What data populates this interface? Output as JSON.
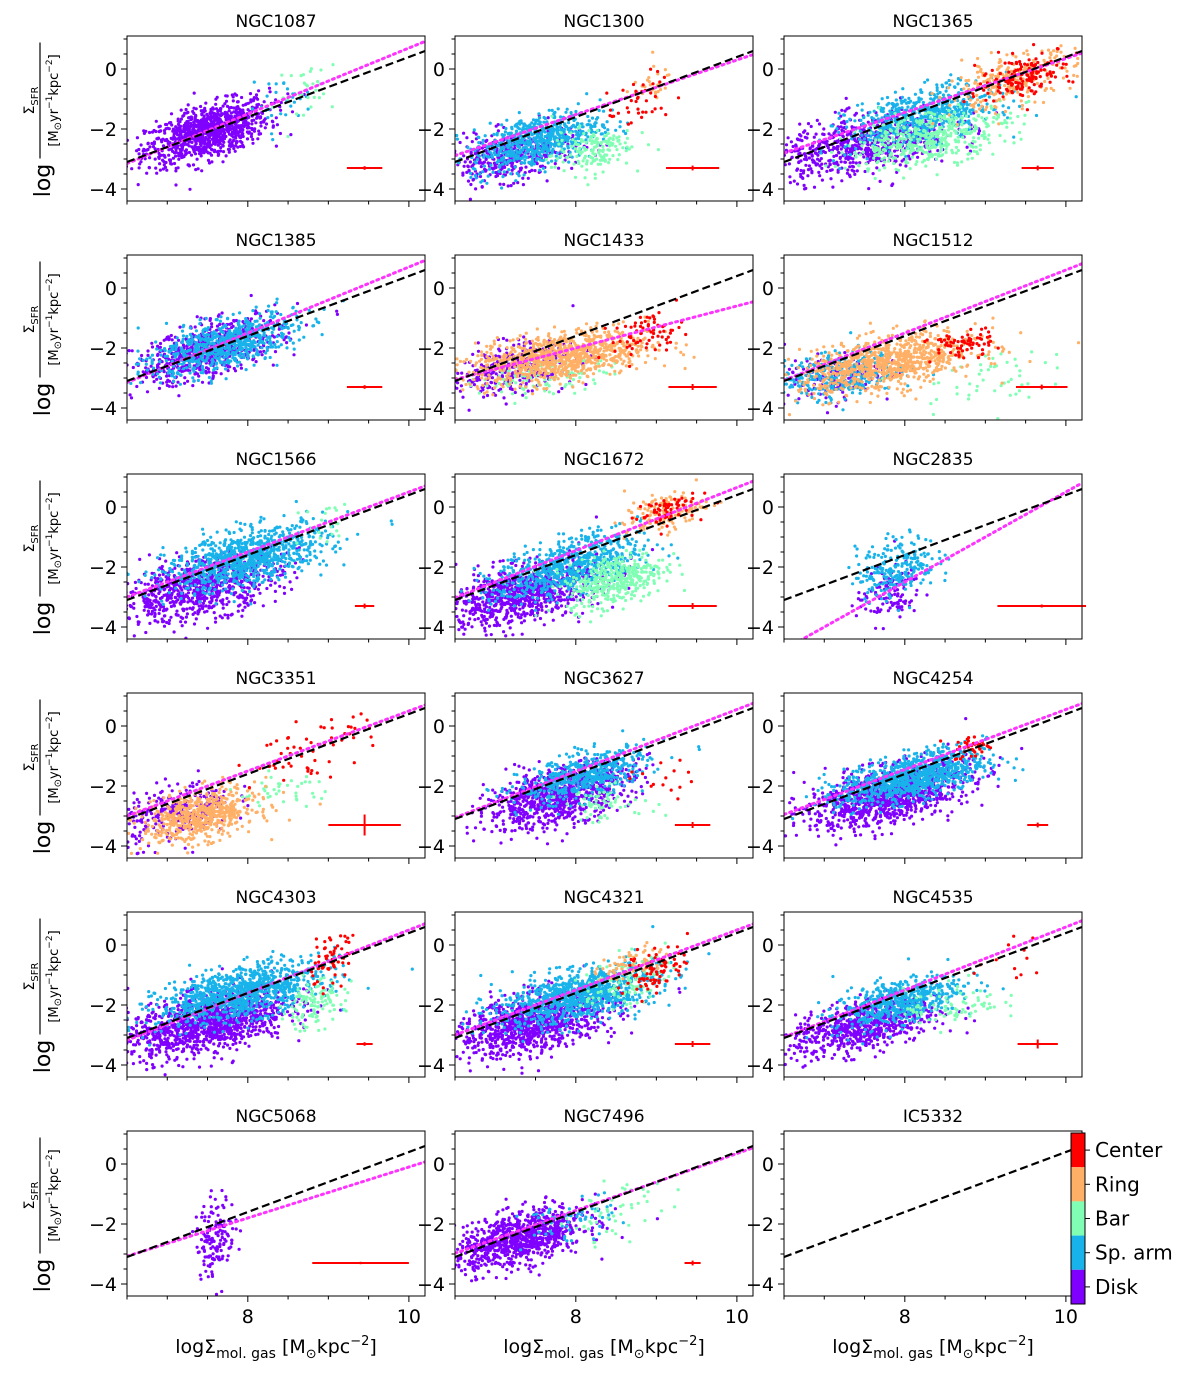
{
  "chart_data": {
    "type": "scatter",
    "layout": {
      "rows": 6,
      "cols": 3
    },
    "xlim": [
      6.5,
      10.2
    ],
    "ylim": [
      -4.4,
      1.1
    ],
    "xticks": [
      8,
      10
    ],
    "yticks": [
      0,
      -2,
      -4
    ],
    "xlabel": {
      "prefix": "logΣ",
      "sub": "mol. gas",
      "unit_open": " [M",
      "sun": "⊙",
      "unit_mid": "kpc",
      "sup": "−2",
      "unit_close": "]"
    },
    "ylabel": {
      "log": "log",
      "sigma": "Σ",
      "sub": "SFR",
      "unit_open": "[M",
      "sun": "⊙",
      "yr": "yr",
      "exp1": "−1",
      "kpc": "kpc",
      "exp2": "−2",
      "unit_close": "]"
    },
    "reference_line": {
      "style": "dashed",
      "color": "#000000",
      "slope": 1.0,
      "intercept": -9.6
    },
    "colorbar": {
      "categories": [
        "Center",
        "Ring",
        "Bar",
        "Sp. arm",
        "Disk"
      ],
      "colors": [
        "#ff0000",
        "#ffb066",
        "#80ffb4",
        "#18b3ea",
        "#8000ff"
      ]
    },
    "panels": [
      {
        "name": "NGC1087",
        "fit": {
          "slope": 1.1,
          "intercept": -10.3
        },
        "err": {
          "x": 9.45,
          "y": -3.3,
          "dx": 0.22,
          "dy": 0.06
        },
        "clusters": [
          {
            "c": "Disk",
            "n": 1000,
            "mx": 7.5,
            "sx": 0.38,
            "my": -2.1,
            "sy": 0.52,
            "rho": 0.55
          },
          {
            "c": "Sp. arm",
            "n": 30,
            "mx": 8.4,
            "sx": 0.2,
            "my": -1.1,
            "sy": 0.4,
            "rho": 0.3
          },
          {
            "c": "Bar",
            "n": 30,
            "mx": 8.8,
            "sx": 0.22,
            "my": -0.7,
            "sy": 0.5,
            "rho": 0.3
          }
        ]
      },
      {
        "name": "NGC1300",
        "fit": {
          "slope": 0.91,
          "intercept": -8.8
        },
        "err": {
          "x": 9.45,
          "y": -3.3,
          "dx": 0.33,
          "dy": 0.08
        },
        "clusters": [
          {
            "c": "Disk",
            "n": 400,
            "mx": 7.2,
            "sx": 0.4,
            "my": -2.9,
            "sy": 0.45,
            "rho": 0.4
          },
          {
            "c": "Sp. arm",
            "n": 650,
            "mx": 7.5,
            "sx": 0.4,
            "my": -2.4,
            "sy": 0.5,
            "rho": 0.5
          },
          {
            "c": "Bar",
            "n": 160,
            "mx": 8.2,
            "sx": 0.25,
            "my": -2.7,
            "sy": 0.4,
            "rho": 0.3
          },
          {
            "c": "Center",
            "n": 40,
            "mx": 8.8,
            "sx": 0.2,
            "my": -1.2,
            "sy": 0.5,
            "rho": 0.5
          },
          {
            "c": "Ring",
            "n": 25,
            "mx": 8.9,
            "sx": 0.15,
            "my": -0.5,
            "sy": 0.3,
            "rho": 0.3
          }
        ]
      },
      {
        "name": "NGC1365",
        "fit": {
          "slope": 0.9,
          "intercept": -8.65
        },
        "err": {
          "x": 9.65,
          "y": -3.3,
          "dx": 0.2,
          "dy": 0.08
        },
        "clusters": [
          {
            "c": "Disk",
            "n": 700,
            "mx": 7.5,
            "sx": 0.55,
            "my": -2.5,
            "sy": 0.55,
            "rho": 0.45
          },
          {
            "c": "Sp. arm",
            "n": 600,
            "mx": 8.2,
            "sx": 0.45,
            "my": -1.6,
            "sy": 0.5,
            "rho": 0.5
          },
          {
            "c": "Bar",
            "n": 450,
            "mx": 8.3,
            "sx": 0.5,
            "my": -2.3,
            "sy": 0.5,
            "rho": 0.5
          },
          {
            "c": "Ring",
            "n": 250,
            "mx": 9.3,
            "sx": 0.4,
            "my": -0.4,
            "sy": 0.5,
            "rho": 0.6
          },
          {
            "c": "Center",
            "n": 150,
            "mx": 9.5,
            "sx": 0.3,
            "my": -0.2,
            "sy": 0.4,
            "rho": 0.5
          }
        ]
      },
      {
        "name": "NGC1385",
        "fit": {
          "slope": 1.1,
          "intercept": -10.3
        },
        "err": {
          "x": 9.45,
          "y": -3.3,
          "dx": 0.22,
          "dy": 0.06
        },
        "clusters": [
          {
            "c": "Disk",
            "n": 650,
            "mx": 7.5,
            "sx": 0.45,
            "my": -2.1,
            "sy": 0.55,
            "rho": 0.6
          },
          {
            "c": "Sp. arm",
            "n": 700,
            "mx": 7.7,
            "sx": 0.45,
            "my": -1.9,
            "sy": 0.5,
            "rho": 0.6
          }
        ]
      },
      {
        "name": "NGC1433",
        "fit": {
          "slope": 0.7,
          "intercept": -7.6
        },
        "err": {
          "x": 9.45,
          "y": -3.3,
          "dx": 0.3,
          "dy": 0.1
        },
        "clusters": [
          {
            "c": "Disk",
            "n": 350,
            "mx": 7.2,
            "sx": 0.4,
            "my": -2.7,
            "sy": 0.45,
            "rho": 0.4
          },
          {
            "c": "Ring",
            "n": 900,
            "mx": 7.8,
            "sx": 0.55,
            "my": -2.3,
            "sy": 0.45,
            "rho": 0.4
          },
          {
            "c": "Bar",
            "n": 120,
            "mx": 7.6,
            "sx": 0.4,
            "my": -2.9,
            "sy": 0.35,
            "rho": 0.3
          },
          {
            "c": "Center",
            "n": 70,
            "mx": 8.9,
            "sx": 0.22,
            "my": -1.5,
            "sy": 0.35,
            "rho": 0.4
          }
        ]
      },
      {
        "name": "NGC1512",
        "fit": {
          "slope": 1.05,
          "intercept": -9.9
        },
        "err": {
          "x": 9.7,
          "y": -3.3,
          "dx": 0.32,
          "dy": 0.08
        },
        "clusters": [
          {
            "c": "Sp. arm",
            "n": 350,
            "mx": 7.2,
            "sx": 0.35,
            "my": -2.9,
            "sy": 0.4,
            "rho": 0.3
          },
          {
            "c": "Ring",
            "n": 850,
            "mx": 7.8,
            "sx": 0.55,
            "my": -2.5,
            "sy": 0.5,
            "rho": 0.5
          },
          {
            "c": "Disk",
            "n": 150,
            "mx": 7.1,
            "sx": 0.3,
            "my": -3.0,
            "sy": 0.4,
            "rho": 0.3
          },
          {
            "c": "Center",
            "n": 70,
            "mx": 8.7,
            "sx": 0.2,
            "my": -1.9,
            "sy": 0.25,
            "rho": 0.3
          },
          {
            "c": "Bar",
            "n": 50,
            "mx": 8.9,
            "sx": 0.4,
            "my": -3.0,
            "sy": 0.5,
            "rho": 0.3
          }
        ]
      },
      {
        "name": "NGC1566",
        "fit": {
          "slope": 1.0,
          "intercept": -9.5
        },
        "err": {
          "x": 9.45,
          "y": -3.3,
          "dx": 0.12,
          "dy": 0.08
        },
        "clusters": [
          {
            "c": "Disk",
            "n": 800,
            "mx": 7.4,
            "sx": 0.5,
            "my": -2.7,
            "sy": 0.55,
            "rho": 0.5
          },
          {
            "c": "Sp. arm",
            "n": 900,
            "mx": 8.0,
            "sx": 0.5,
            "my": -1.7,
            "sy": 0.55,
            "rho": 0.55
          },
          {
            "c": "Bar",
            "n": 20,
            "mx": 9.0,
            "sx": 0.2,
            "my": -0.6,
            "sy": 0.4,
            "rho": 0.3
          }
        ]
      },
      {
        "name": "NGC1672",
        "fit": {
          "slope": 1.05,
          "intercept": -9.85
        },
        "err": {
          "x": 9.45,
          "y": -3.3,
          "dx": 0.3,
          "dy": 0.1
        },
        "clusters": [
          {
            "c": "Disk",
            "n": 900,
            "mx": 7.3,
            "sx": 0.5,
            "my": -2.9,
            "sy": 0.55,
            "rho": 0.5
          },
          {
            "c": "Sp. arm",
            "n": 700,
            "mx": 7.9,
            "sx": 0.45,
            "my": -2.0,
            "sy": 0.55,
            "rho": 0.55
          },
          {
            "c": "Bar",
            "n": 400,
            "mx": 8.5,
            "sx": 0.3,
            "my": -2.4,
            "sy": 0.45,
            "rho": 0.4
          },
          {
            "c": "Ring",
            "n": 150,
            "mx": 9.1,
            "sx": 0.25,
            "my": -0.2,
            "sy": 0.35,
            "rho": 0.5
          },
          {
            "c": "Center",
            "n": 60,
            "mx": 9.1,
            "sx": 0.2,
            "my": -0.1,
            "sy": 0.3,
            "rho": 0.5
          }
        ]
      },
      {
        "name": "NGC2835",
        "fit": {
          "slope": 1.5,
          "intercept": -14.5
        },
        "err": {
          "x": 9.7,
          "y": -3.3,
          "dx": 0.55,
          "dy": 0.05
        },
        "clusters": [
          {
            "c": "Sp. arm",
            "n": 240,
            "mx": 7.9,
            "sx": 0.25,
            "my": -2.0,
            "sy": 0.5,
            "rho": 0.3
          },
          {
            "c": "Disk",
            "n": 120,
            "mx": 7.8,
            "sx": 0.2,
            "my": -2.9,
            "sy": 0.5,
            "rho": 0.3
          }
        ]
      },
      {
        "name": "NGC3351",
        "fit": {
          "slope": 1.0,
          "intercept": -9.5
        },
        "err": {
          "x": 9.45,
          "y": -3.3,
          "dx": 0.45,
          "dy": 0.35
        },
        "clusters": [
          {
            "c": "Disk",
            "n": 280,
            "mx": 7.1,
            "sx": 0.35,
            "my": -2.9,
            "sy": 0.5,
            "rho": 0.4
          },
          {
            "c": "Ring",
            "n": 600,
            "mx": 7.4,
            "sx": 0.35,
            "my": -3.0,
            "sy": 0.45,
            "rho": 0.4
          },
          {
            "c": "Bar",
            "n": 40,
            "mx": 8.4,
            "sx": 0.35,
            "my": -2.2,
            "sy": 0.3,
            "rho": 0.3
          },
          {
            "c": "Center",
            "n": 60,
            "mx": 8.8,
            "sx": 0.4,
            "my": -0.8,
            "sy": 0.5,
            "rho": 0.5
          }
        ]
      },
      {
        "name": "NGC3627",
        "fit": {
          "slope": 1.03,
          "intercept": -9.75
        },
        "err": {
          "x": 9.45,
          "y": -3.3,
          "dx": 0.22,
          "dy": 0.1
        },
        "clusters": [
          {
            "c": "Disk",
            "n": 900,
            "mx": 7.8,
            "sx": 0.45,
            "my": -2.3,
            "sy": 0.55,
            "rho": 0.55
          },
          {
            "c": "Sp. arm",
            "n": 500,
            "mx": 8.1,
            "sx": 0.4,
            "my": -1.7,
            "sy": 0.45,
            "rho": 0.55
          },
          {
            "c": "Bar",
            "n": 60,
            "mx": 8.4,
            "sx": 0.3,
            "my": -2.6,
            "sy": 0.3,
            "rho": 0.3
          },
          {
            "c": "Center",
            "n": 15,
            "mx": 9.0,
            "sx": 0.2,
            "my": -1.9,
            "sy": 0.4,
            "rho": 0.3
          }
        ]
      },
      {
        "name": "NGC4254",
        "fit": {
          "slope": 1.0,
          "intercept": -9.45
        },
        "err": {
          "x": 9.65,
          "y": -3.3,
          "dx": 0.13,
          "dy": 0.08
        },
        "clusters": [
          {
            "c": "Disk",
            "n": 1100,
            "mx": 7.8,
            "sx": 0.5,
            "my": -2.3,
            "sy": 0.55,
            "rho": 0.55
          },
          {
            "c": "Sp. arm",
            "n": 900,
            "mx": 8.1,
            "sx": 0.45,
            "my": -1.7,
            "sy": 0.45,
            "rho": 0.55
          },
          {
            "c": "Center",
            "n": 40,
            "mx": 8.85,
            "sx": 0.12,
            "my": -0.7,
            "sy": 0.2,
            "rho": 0.3
          }
        ]
      },
      {
        "name": "NGC4303",
        "fit": {
          "slope": 1.05,
          "intercept": -10.0
        },
        "err": {
          "x": 9.45,
          "y": -3.3,
          "dx": 0.1,
          "dy": 0.06
        },
        "clusters": [
          {
            "c": "Disk",
            "n": 1200,
            "mx": 7.5,
            "sx": 0.5,
            "my": -2.6,
            "sy": 0.55,
            "rho": 0.5
          },
          {
            "c": "Sp. arm",
            "n": 1000,
            "mx": 7.9,
            "sx": 0.5,
            "my": -1.6,
            "sy": 0.5,
            "rho": 0.55
          },
          {
            "c": "Bar",
            "n": 120,
            "mx": 8.8,
            "sx": 0.2,
            "my": -2.0,
            "sy": 0.4,
            "rho": 0.3
          },
          {
            "c": "Center",
            "n": 60,
            "mx": 9.0,
            "sx": 0.15,
            "my": -0.6,
            "sy": 0.45,
            "rho": 0.5
          }
        ]
      },
      {
        "name": "NGC4321",
        "fit": {
          "slope": 1.0,
          "intercept": -9.5
        },
        "err": {
          "x": 9.45,
          "y": -3.3,
          "dx": 0.22,
          "dy": 0.1
        },
        "clusters": [
          {
            "c": "Disk",
            "n": 1000,
            "mx": 7.5,
            "sx": 0.5,
            "my": -2.6,
            "sy": 0.55,
            "rho": 0.5
          },
          {
            "c": "Sp. arm",
            "n": 900,
            "mx": 8.0,
            "sx": 0.5,
            "my": -1.7,
            "sy": 0.5,
            "rho": 0.55
          },
          {
            "c": "Bar",
            "n": 100,
            "mx": 8.6,
            "sx": 0.25,
            "my": -1.2,
            "sy": 0.45,
            "rho": 0.4
          },
          {
            "c": "Ring",
            "n": 60,
            "mx": 8.7,
            "sx": 0.2,
            "my": -0.6,
            "sy": 0.3,
            "rho": 0.4
          },
          {
            "c": "Center",
            "n": 80,
            "mx": 9.0,
            "sx": 0.2,
            "my": -0.8,
            "sy": 0.4,
            "rho": 0.4
          }
        ]
      },
      {
        "name": "NGC4535",
        "fit": {
          "slope": 1.05,
          "intercept": -9.9
        },
        "err": {
          "x": 9.65,
          "y": -3.3,
          "dx": 0.25,
          "dy": 0.15
        },
        "clusters": [
          {
            "c": "Disk",
            "n": 700,
            "mx": 7.5,
            "sx": 0.45,
            "my": -2.7,
            "sy": 0.5,
            "rho": 0.5
          },
          {
            "c": "Sp. arm",
            "n": 500,
            "mx": 7.9,
            "sx": 0.4,
            "my": -1.9,
            "sy": 0.45,
            "rho": 0.55
          },
          {
            "c": "Bar",
            "n": 80,
            "mx": 8.6,
            "sx": 0.3,
            "my": -2.0,
            "sy": 0.4,
            "rho": 0.3
          },
          {
            "c": "Center",
            "n": 12,
            "mx": 9.3,
            "sx": 0.2,
            "my": -0.5,
            "sy": 0.4,
            "rho": 0.3
          }
        ]
      },
      {
        "name": "NGC5068",
        "fit": {
          "slope": 0.85,
          "intercept": -8.6
        },
        "err": {
          "x": 9.4,
          "y": -3.3,
          "dx": 0.6,
          "dy": 0.04
        },
        "clusters": [
          {
            "c": "Disk",
            "n": 150,
            "mx": 7.6,
            "sx": 0.12,
            "my": -2.4,
            "sy": 0.65,
            "rho": 0.2
          }
        ]
      },
      {
        "name": "NGC7496",
        "fit": {
          "slope": 0.95,
          "intercept": -9.15
        },
        "err": {
          "x": 9.45,
          "y": -3.3,
          "dx": 0.1,
          "dy": 0.08
        },
        "clusters": [
          {
            "c": "Disk",
            "n": 900,
            "mx": 7.3,
            "sx": 0.4,
            "my": -2.5,
            "sy": 0.5,
            "rho": 0.5
          },
          {
            "c": "Sp. arm",
            "n": 60,
            "mx": 7.9,
            "sx": 0.3,
            "my": -1.9,
            "sy": 0.4,
            "rho": 0.4
          },
          {
            "c": "Bar",
            "n": 50,
            "mx": 8.5,
            "sx": 0.3,
            "my": -1.6,
            "sy": 0.5,
            "rho": 0.4
          }
        ]
      },
      {
        "name": "IC5332",
        "fit": null,
        "err": null,
        "clusters": []
      }
    ]
  }
}
